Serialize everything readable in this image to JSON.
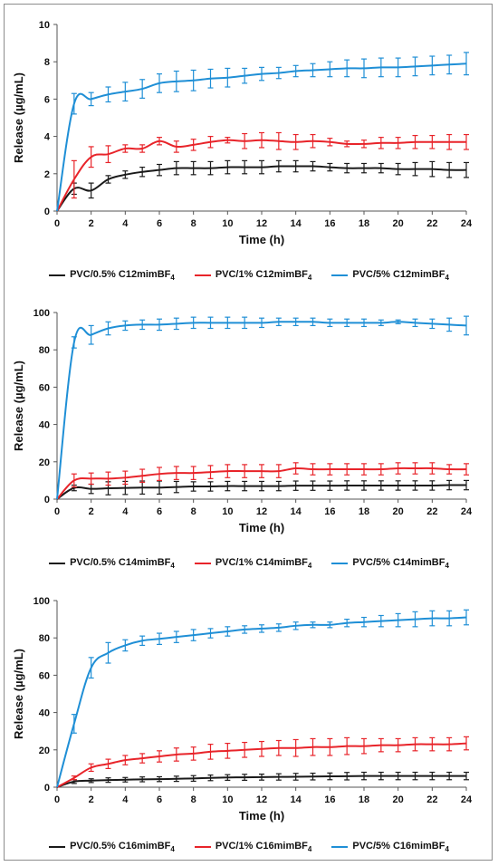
{
  "chart_data": [
    {
      "type": "line",
      "title": "",
      "xlabel": "Time (h)",
      "ylabel": "Release (µg/mL)",
      "xlim": [
        0,
        24
      ],
      "ylim": [
        0,
        10
      ],
      "xticks": [
        0,
        2,
        4,
        6,
        8,
        10,
        12,
        14,
        16,
        18,
        20,
        22,
        24
      ],
      "yticks": [
        0,
        2,
        4,
        6,
        8,
        10
      ],
      "grid": false,
      "legend_position": "bottom",
      "x": [
        0,
        1,
        2,
        3,
        4,
        5,
        6,
        7,
        8,
        9,
        10,
        11,
        12,
        13,
        14,
        15,
        16,
        17,
        18,
        19,
        20,
        21,
        22,
        23,
        24
      ],
      "series": [
        {
          "name": "PVC/0.5% C12mimBF4",
          "color": "#1a1a1a",
          "values": [
            0,
            1.2,
            1.1,
            1.7,
            1.95,
            2.1,
            2.2,
            2.3,
            2.3,
            2.3,
            2.35,
            2.35,
            2.35,
            2.4,
            2.4,
            2.4,
            2.35,
            2.3,
            2.3,
            2.3,
            2.25,
            2.25,
            2.25,
            2.2,
            2.2
          ],
          "errors": [
            0,
            0.3,
            0.4,
            0.2,
            0.2,
            0.25,
            0.3,
            0.35,
            0.35,
            0.35,
            0.35,
            0.35,
            0.35,
            0.3,
            0.3,
            0.25,
            0.2,
            0.25,
            0.25,
            0.25,
            0.3,
            0.35,
            0.4,
            0.4,
            0.4
          ]
        },
        {
          "name": "PVC/1% C12mimBF4",
          "color": "#e8242a",
          "values": [
            0,
            1.7,
            2.9,
            3.05,
            3.35,
            3.35,
            3.75,
            3.45,
            3.55,
            3.7,
            3.8,
            3.75,
            3.8,
            3.75,
            3.7,
            3.75,
            3.7,
            3.6,
            3.6,
            3.65,
            3.65,
            3.7,
            3.7,
            3.7,
            3.7
          ],
          "errors": [
            0,
            1.0,
            0.55,
            0.45,
            0.2,
            0.2,
            0.2,
            0.3,
            0.3,
            0.3,
            0.15,
            0.4,
            0.4,
            0.45,
            0.4,
            0.35,
            0.2,
            0.15,
            0.2,
            0.3,
            0.3,
            0.35,
            0.35,
            0.4,
            0.4
          ]
        },
        {
          "name": "PVC/5% C12mimBF4",
          "color": "#1f8fd6",
          "values": [
            0,
            5.75,
            6.0,
            6.25,
            6.4,
            6.55,
            6.85,
            6.95,
            7.0,
            7.1,
            7.15,
            7.25,
            7.35,
            7.4,
            7.5,
            7.55,
            7.6,
            7.65,
            7.65,
            7.7,
            7.7,
            7.75,
            7.8,
            7.85,
            7.9
          ],
          "errors": [
            0,
            0.55,
            0.35,
            0.4,
            0.5,
            0.5,
            0.5,
            0.55,
            0.55,
            0.5,
            0.5,
            0.4,
            0.35,
            0.3,
            0.3,
            0.35,
            0.4,
            0.45,
            0.5,
            0.5,
            0.5,
            0.5,
            0.5,
            0.5,
            0.6
          ]
        }
      ]
    },
    {
      "type": "line",
      "title": "",
      "xlabel": "Time (h)",
      "ylabel": "Release (µg/mL)",
      "xlim": [
        0,
        24
      ],
      "ylim": [
        0,
        100
      ],
      "xticks": [
        0,
        2,
        4,
        6,
        8,
        10,
        12,
        14,
        16,
        18,
        20,
        22,
        24
      ],
      "yticks": [
        0,
        20,
        40,
        60,
        80,
        100
      ],
      "grid": false,
      "legend_position": "bottom",
      "x": [
        0,
        1,
        2,
        3,
        4,
        5,
        6,
        7,
        8,
        9,
        10,
        11,
        12,
        13,
        14,
        15,
        16,
        17,
        18,
        19,
        20,
        21,
        22,
        23,
        24
      ],
      "series": [
        {
          "name": "PVC/0.5% C14mimBF4",
          "color": "#1a1a1a",
          "values": [
            0,
            6.0,
            5.5,
            5.8,
            6.0,
            6.2,
            6.2,
            6.5,
            6.8,
            6.8,
            7.0,
            7.0,
            7.0,
            7.0,
            7.2,
            7.2,
            7.2,
            7.3,
            7.3,
            7.3,
            7.3,
            7.3,
            7.3,
            7.5,
            7.5
          ],
          "errors": [
            0,
            1.5,
            2.5,
            3.5,
            3.5,
            3.5,
            3.5,
            3.0,
            2.5,
            2.5,
            2.5,
            2.5,
            2.5,
            2.5,
            2.5,
            2.5,
            2.5,
            2.5,
            2.5,
            2.5,
            2.5,
            2.5,
            2.5,
            2.5,
            2.5
          ]
        },
        {
          "name": "PVC/1% C14mimBF4",
          "color": "#e8242a",
          "values": [
            0,
            10.0,
            11.0,
            11.0,
            11.5,
            12.5,
            13.5,
            14.0,
            14.0,
            14.5,
            15.0,
            15.0,
            15.0,
            15.0,
            16.5,
            16.0,
            16.0,
            16.0,
            16.0,
            16.0,
            16.5,
            16.5,
            16.5,
            16.0,
            16.0
          ],
          "errors": [
            0,
            3.5,
            3.0,
            3.5,
            3.5,
            3.5,
            3.5,
            3.5,
            3.5,
            3.5,
            3.5,
            3.5,
            3.5,
            3.5,
            3.0,
            3.0,
            3.0,
            3.0,
            3.0,
            3.0,
            3.0,
            3.0,
            3.0,
            2.5,
            3.0
          ]
        },
        {
          "name": "PVC/5% C14mimBF4",
          "color": "#1f8fd6",
          "values": [
            0,
            84.0,
            88.0,
            91.5,
            93.0,
            93.5,
            93.5,
            94.0,
            94.5,
            94.5,
            94.5,
            94.5,
            94.5,
            95.0,
            95.0,
            95.0,
            94.5,
            94.5,
            94.5,
            94.5,
            95.0,
            94.5,
            94.0,
            93.5,
            93.0
          ],
          "errors": [
            0,
            3.0,
            5.0,
            3.5,
            2.5,
            2.5,
            3.0,
            3.0,
            3.0,
            3.0,
            3.0,
            3.0,
            2.5,
            2.0,
            2.0,
            2.0,
            2.0,
            2.0,
            2.0,
            1.5,
            1.0,
            2.0,
            2.5,
            3.5,
            5.0
          ]
        }
      ]
    },
    {
      "type": "line",
      "title": "",
      "xlabel": "Time (h)",
      "ylabel": "Release (µg/mL)",
      "xlim": [
        0,
        24
      ],
      "ylim": [
        0,
        100
      ],
      "xticks": [
        0,
        2,
        4,
        6,
        8,
        10,
        12,
        14,
        16,
        18,
        20,
        22,
        24
      ],
      "yticks": [
        0,
        20,
        40,
        60,
        80,
        100
      ],
      "grid": false,
      "legend_position": "bottom",
      "x": [
        0,
        1,
        2,
        3,
        4,
        5,
        6,
        7,
        8,
        9,
        10,
        11,
        12,
        13,
        14,
        15,
        16,
        17,
        18,
        19,
        20,
        21,
        22,
        23,
        24
      ],
      "series": [
        {
          "name": "PVC/0.5% C16mimBF4",
          "color": "#1a1a1a",
          "values": [
            0,
            3.0,
            3.5,
            3.8,
            4.0,
            4.2,
            4.3,
            4.5,
            4.7,
            5.0,
            5.2,
            5.3,
            5.4,
            5.5,
            5.6,
            5.7,
            5.8,
            5.9,
            6.0,
            6.0,
            6.0,
            6.0,
            6.0,
            6.0,
            6.0
          ],
          "errors": [
            0,
            1.0,
            1.0,
            1.2,
            1.2,
            1.3,
            1.3,
            1.4,
            1.5,
            1.5,
            1.5,
            1.6,
            1.6,
            1.7,
            1.8,
            1.8,
            1.8,
            2.0,
            2.0,
            2.0,
            2.0,
            2.0,
            2.0,
            2.0,
            2.0
          ]
        },
        {
          "name": "PVC/1% C16mimBF4",
          "color": "#e8242a",
          "values": [
            0,
            5.0,
            10.5,
            12.5,
            14.5,
            15.5,
            16.5,
            17.5,
            18.0,
            19.0,
            19.5,
            20.0,
            20.5,
            21.0,
            21.0,
            21.5,
            21.5,
            22.0,
            22.0,
            22.5,
            22.5,
            23.0,
            23.0,
            23.0,
            23.5
          ],
          "errors": [
            0,
            1.0,
            2.0,
            2.5,
            2.5,
            2.5,
            3.0,
            3.5,
            3.5,
            4.0,
            4.0,
            4.0,
            4.0,
            4.0,
            4.5,
            4.5,
            4.5,
            4.5,
            4.0,
            3.5,
            3.5,
            3.5,
            3.5,
            3.5,
            3.5
          ]
        },
        {
          "name": "PVC/5% C16mimBF4",
          "color": "#1f8fd6",
          "values": [
            0,
            34.0,
            64.0,
            72.0,
            76.0,
            78.5,
            79.5,
            80.5,
            81.5,
            82.5,
            83.5,
            84.5,
            85.0,
            85.5,
            86.5,
            87.0,
            87.0,
            88.0,
            88.5,
            89.0,
            89.5,
            90.0,
            90.5,
            90.5,
            91.0
          ],
          "errors": [
            0,
            5.0,
            5.5,
            5.5,
            3.0,
            2.5,
            3.0,
            3.0,
            3.0,
            2.5,
            2.5,
            2.0,
            2.0,
            2.0,
            2.0,
            1.5,
            1.5,
            2.0,
            2.5,
            3.0,
            3.5,
            4.0,
            4.0,
            4.0,
            4.0
          ]
        }
      ]
    }
  ],
  "legends": [
    [
      {
        "prefix": "PVC/0.5% C12mimBF",
        "sub": "4",
        "color": "#1a1a1a"
      },
      {
        "prefix": "PVC/1% C12mimBF",
        "sub": "4",
        "color": "#e8242a"
      },
      {
        "prefix": "PVC/5% C12mimBF",
        "sub": "4",
        "color": "#1f8fd6"
      }
    ],
    [
      {
        "prefix": "PVC/0.5% C14mimBF",
        "sub": "4",
        "color": "#1a1a1a"
      },
      {
        "prefix": "PVC/1% C14mimBF",
        "sub": "4",
        "color": "#e8242a"
      },
      {
        "prefix": "PVC/5% C14mimBF",
        "sub": "4",
        "color": "#1f8fd6"
      }
    ],
    [
      {
        "prefix": "PVC/0.5% C16mimBF",
        "sub": "4",
        "color": "#1a1a1a"
      },
      {
        "prefix": "PVC/1% C16mimBF",
        "sub": "4",
        "color": "#e8242a"
      },
      {
        "prefix": "PVC/5% C16mimBF",
        "sub": "4",
        "color": "#1f8fd6"
      }
    ]
  ]
}
